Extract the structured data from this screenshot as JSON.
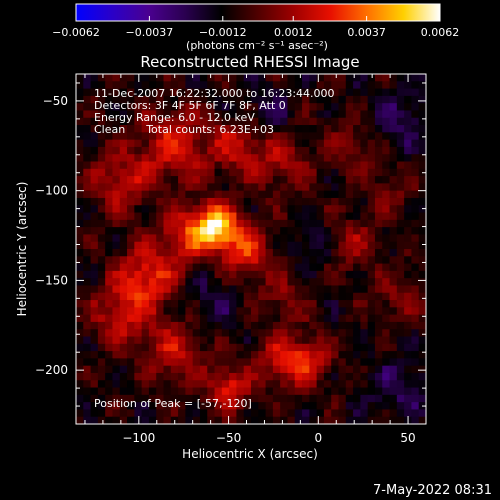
{
  "chart_data": {
    "type": "heatmap",
    "title": "Reconstructed RHESSI Image",
    "xlabel": "Heliocentric X (arcsec)",
    "ylabel": "Heliocentric Y (arcsec)",
    "xlim": [
      -135,
      60
    ],
    "ylim": [
      -230,
      -35
    ],
    "xticks": [
      -100,
      -50,
      0,
      50
    ],
    "xtick_labels": [
      "−100",
      "−50",
      "0",
      "50"
    ],
    "yticks": [
      -50,
      -100,
      -150,
      -200
    ],
    "ytick_labels": [
      "−50",
      "−100",
      "−150",
      "−200"
    ],
    "colorbar": {
      "range": [
        -0.0062,
        0.0062
      ],
      "ticks": [
        -0.0062,
        -0.0037,
        -0.0012,
        0.0012,
        0.0037,
        0.0062
      ],
      "tick_labels": [
        "−0.0062",
        "−0.0037",
        "−0.0012",
        "0.0012",
        "0.0037",
        "0.0062"
      ],
      "unit_label": "(photons cm⁻² s⁻¹ asec⁻²)",
      "colors": [
        "#0000ff",
        "#2a00c8",
        "#4a0090",
        "#2a0050",
        "#000000",
        "#500000",
        "#a00000",
        "#e81000",
        "#ff7000",
        "#ffd000",
        "#ffffff"
      ]
    },
    "annotations": [
      "11-Dec-2007 16:22:32.000 to 16:23:44.000",
      "Detectors: 3F 4F 5F 6F 7F 8F, Att 0",
      "Energy Range: 6.0 - 12.0 keV",
      "Clean      Total counts: 6.23E+03"
    ],
    "peak_label": "Position of Peak = [-57,-120]",
    "peak": [
      -57,
      -120
    ],
    "peak_value": 0.0062,
    "sources": [
      {
        "x": -57,
        "y": -120,
        "sigma": 9,
        "amp": 0.0062
      },
      {
        "x": -40,
        "y": -135,
        "sigma": 10,
        "amp": 0.0032
      },
      {
        "x": -75,
        "y": -125,
        "sigma": 10,
        "amp": 0.0028
      },
      {
        "x": -95,
        "y": -148,
        "sigma": 12,
        "amp": 0.0035
      },
      {
        "x": -110,
        "y": -170,
        "sigma": 12,
        "amp": 0.0025
      },
      {
        "x": -80,
        "y": -75,
        "sigma": 14,
        "amp": 0.003
      },
      {
        "x": -110,
        "y": -95,
        "sigma": 12,
        "amp": 0.0025
      },
      {
        "x": -45,
        "y": -75,
        "sigma": 10,
        "amp": 0.0025
      },
      {
        "x": -20,
        "y": -85,
        "sigma": 12,
        "amp": 0.002
      },
      {
        "x": 20,
        "y": -75,
        "sigma": 10,
        "amp": 0.0015
      },
      {
        "x": -20,
        "y": -195,
        "sigma": 10,
        "amp": 0.0028
      },
      {
        "x": -5,
        "y": -195,
        "sigma": 9,
        "amp": 0.0025
      },
      {
        "x": -50,
        "y": -210,
        "sigma": 8,
        "amp": 0.0035
      },
      {
        "x": -80,
        "y": -190,
        "sigma": 12,
        "amp": 0.0025
      },
      {
        "x": -20,
        "y": -160,
        "sigma": 10,
        "amp": 0.0015
      },
      {
        "x": 20,
        "y": -130,
        "sigma": 10,
        "amp": 0.0018
      },
      {
        "x": 45,
        "y": -160,
        "sigma": 10,
        "amp": 0.0015
      },
      {
        "x": 40,
        "y": -100,
        "sigma": 10,
        "amp": 0.0012
      },
      {
        "x": -60,
        "y": -160,
        "sigma": 12,
        "amp": -0.0012
      },
      {
        "x": -30,
        "y": -55,
        "sigma": 10,
        "amp": -0.0012
      },
      {
        "x": 45,
        "y": -60,
        "sigma": 12,
        "amp": -0.0015
      },
      {
        "x": 45,
        "y": -210,
        "sigma": 12,
        "amp": -0.0015
      },
      {
        "x": -5,
        "y": -130,
        "sigma": 8,
        "amp": -0.0012
      }
    ]
  },
  "footer": {
    "timestamp": "7-May-2022 08:31"
  }
}
